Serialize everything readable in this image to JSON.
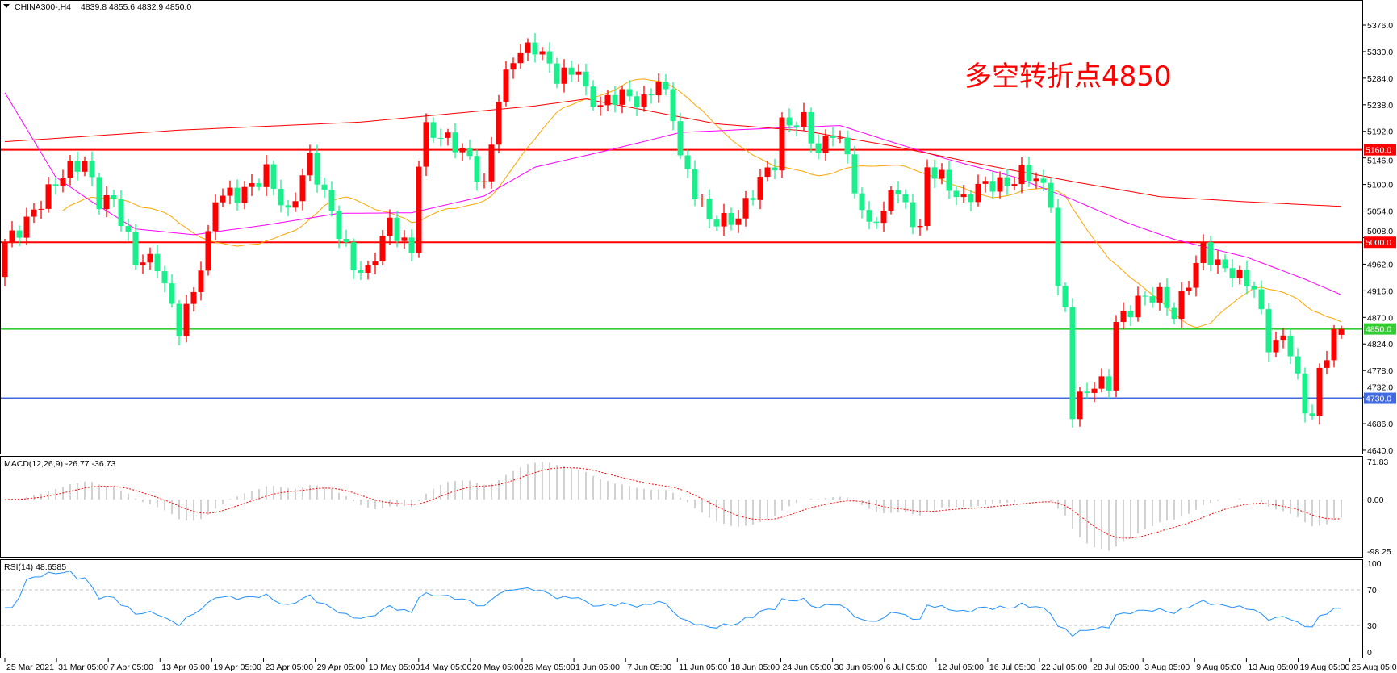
{
  "header": {
    "symbol": "CHINA300-,H4",
    "ohlc": "4839.8 4855.6 4832.9 4850.0"
  },
  "annotation": "多空转折点4850",
  "colors": {
    "up_candle": "#ff0000",
    "down_candle": "#19f08c",
    "ma_fast": "#ffa500",
    "ma_mid": "#ff00ff",
    "ma_slow": "#ff0000",
    "macd_hist": "#b4b4b4",
    "macd_signal": "#ff0000",
    "rsi": "#1e90ff"
  },
  "chart_data": [
    {
      "type": "candlestick",
      "title": "CHINA300-,H4",
      "timeframe": "H4",
      "last_bar": {
        "open": 4839.8,
        "high": 4855.6,
        "low": 4832.9,
        "close": 4850.0
      },
      "bar_count": 185,
      "close_path": [
        [
          0,
          5000
        ],
        [
          4,
          5060
        ],
        [
          9,
          5120
        ],
        [
          11,
          5140
        ],
        [
          13,
          5080
        ],
        [
          15,
          5080
        ],
        [
          18,
          4960
        ],
        [
          21,
          4960
        ],
        [
          24,
          4860
        ],
        [
          26,
          4920
        ],
        [
          28,
          5000
        ],
        [
          29,
          5070
        ],
        [
          32,
          5080
        ],
        [
          36,
          5130
        ],
        [
          39,
          5040
        ],
        [
          42,
          5140
        ],
        [
          45,
          5060
        ],
        [
          48,
          4960
        ],
        [
          50,
          4940
        ],
        [
          53,
          5030
        ],
        [
          56,
          4990
        ],
        [
          57,
          5150
        ],
        [
          58,
          5200
        ],
        [
          61,
          5170
        ],
        [
          64,
          5140
        ],
        [
          66,
          5100
        ],
        [
          68,
          5260
        ],
        [
          70,
          5320
        ],
        [
          73,
          5330
        ],
        [
          76,
          5290
        ],
        [
          79,
          5310
        ],
        [
          80,
          5260
        ],
        [
          82,
          5230
        ],
        [
          85,
          5250
        ],
        [
          88,
          5250
        ],
        [
          90,
          5290
        ],
        [
          92,
          5220
        ],
        [
          93,
          5140
        ],
        [
          95,
          5080
        ],
        [
          97,
          5040
        ],
        [
          101,
          5050
        ],
        [
          104,
          5100
        ],
        [
          106,
          5130
        ],
        [
          107,
          5200
        ],
        [
          110,
          5220
        ],
        [
          112,
          5160
        ],
        [
          114,
          5190
        ],
        [
          116,
          5140
        ],
        [
          118,
          5040
        ],
        [
          121,
          5050
        ],
        [
          122,
          5110
        ],
        [
          124,
          5060
        ],
        [
          126,
          5010
        ],
        [
          127,
          5120
        ],
        [
          129,
          5110
        ],
        [
          132,
          5080
        ],
        [
          134,
          5100
        ],
        [
          138,
          5090
        ],
        [
          140,
          5120
        ],
        [
          142,
          5120
        ],
        [
          144,
          5080
        ],
        [
          145,
          4920
        ],
        [
          146,
          4880
        ],
        [
          147,
          4700
        ],
        [
          148,
          4720
        ],
        [
          150,
          4750
        ],
        [
          152,
          4760
        ],
        [
          153,
          4870
        ],
        [
          156,
          4900
        ],
        [
          159,
          4900
        ],
        [
          161,
          4870
        ],
        [
          163,
          4940
        ],
        [
          165,
          5000
        ],
        [
          167,
          4960
        ],
        [
          170,
          4930
        ],
        [
          172,
          4920
        ],
        [
          174,
          4830
        ],
        [
          176,
          4840
        ],
        [
          177,
          4820
        ],
        [
          179,
          4700
        ],
        [
          180,
          4700
        ],
        [
          181,
          4760
        ],
        [
          182,
          4800
        ],
        [
          183,
          4850
        ],
        [
          184,
          4850
        ]
      ],
      "moving_averages": [
        {
          "color": "#ffa500",
          "period": 20
        },
        {
          "color": "#ff00ff",
          "path": [
            [
              0,
              5259
            ],
            [
              7,
              5113
            ],
            [
              12,
              5070
            ],
            [
              18,
              5023
            ],
            [
              26,
              5013
            ],
            [
              36,
              5030
            ],
            [
              46,
              5050
            ],
            [
              56,
              5051
            ],
            [
              66,
              5080
            ],
            [
              73,
              5130
            ],
            [
              83,
              5159
            ],
            [
              93,
              5190
            ],
            [
              105,
              5197
            ],
            [
              115,
              5202
            ],
            [
              122,
              5174
            ],
            [
              130,
              5143
            ],
            [
              139,
              5113
            ],
            [
              147,
              5074
            ],
            [
              154,
              5036
            ],
            [
              161,
              5005
            ],
            [
              171,
              4974
            ],
            [
              179,
              4936
            ],
            [
              184,
              4909
            ]
          ]
        },
        {
          "color": "#ff0000",
          "path": [
            [
              0,
              5174
            ],
            [
              24,
              5194
            ],
            [
              49,
              5208
            ],
            [
              73,
              5236
            ],
            [
              80,
              5248
            ],
            [
              98,
              5205
            ],
            [
              110,
              5193
            ],
            [
              122,
              5167
            ],
            [
              134,
              5136
            ],
            [
              147,
              5105
            ],
            [
              159,
              5079
            ],
            [
              171,
              5070
            ],
            [
              184,
              5062
            ]
          ]
        }
      ],
      "horizontal_lines": [
        {
          "value": 5160.0,
          "label": "5160.0",
          "color": "#ff0000"
        },
        {
          "value": 5000.0,
          "label": "5000.0",
          "color": "#ff0000"
        },
        {
          "value": 4850.0,
          "label": "4850.0",
          "color": "#32cd32"
        },
        {
          "value": 4730.0,
          "label": "4730.0",
          "color": "#4169e1"
        }
      ],
      "y_ticks": [
        "5376.0",
        "5330.0",
        "5284.0",
        "5238.0",
        "5192.0",
        "5146.0",
        "5100.0",
        "5054.0",
        "5008.0",
        "4962.0",
        "4916.0",
        "4870.0",
        "4824.0",
        "4778.0",
        "4732.0",
        "4686.0",
        "4640.0"
      ],
      "ylim": [
        4640,
        5376
      ],
      "x_ticks": [
        "25 Mar 2021",
        "31 Mar 05:00",
        "7 Apr 05:00",
        "13 Apr 05:00",
        "19 Apr 05:00",
        "23 Apr 05:00",
        "29 Apr 05:00",
        "10 May 05:00",
        "14 May 05:00",
        "20 May 05:00",
        "26 May 05:00",
        "1 Jun 05:00",
        "7 Jun 05:00",
        "11 Jun 05:00",
        "18 Jun 05:00",
        "24 Jun 05:00",
        "30 Jun 05:00",
        "6 Jul 05:00",
        "12 Jul 05:00",
        "16 Jul 05:00",
        "22 Jul 05:00",
        "28 Jul 05:00",
        "3 Aug 05:00",
        "9 Aug 05:00",
        "13 Aug 05:00",
        "19 Aug 05:00",
        "25 Aug 05:00"
      ]
    },
    {
      "type": "bar+line",
      "label": "MACD(12,26,9) -26.77 -36.73",
      "y_ticks": [
        "71.83",
        "0.00",
        "-98.25"
      ],
      "ylim": [
        -98.25,
        71.83
      ]
    },
    {
      "type": "line",
      "label": "RSI(14) 48.6585",
      "y_ticks": [
        "100",
        "70",
        "30",
        "0"
      ],
      "levels": [
        70,
        30
      ],
      "ylim": [
        0,
        100
      ]
    }
  ]
}
